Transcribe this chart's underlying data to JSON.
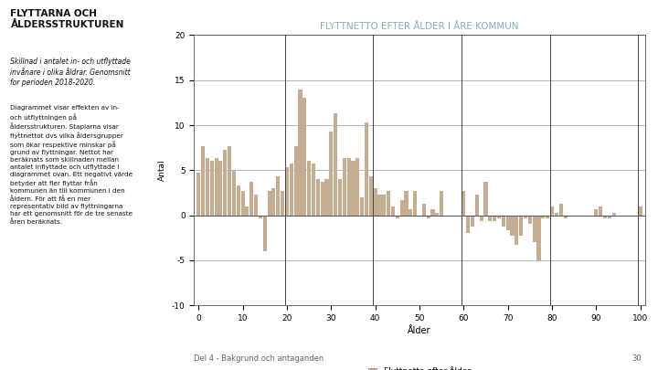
{
  "title_main": "FLYTTARNA OCH\nÅLDERSSTRUKTUREN",
  "subtitle": "Skillnad i antalet in- och utflyttade\ninvånare i olika åldrar. Genomsnitt\nfor perioden 2018-2020.",
  "body_text": "Diagrammet visar effekten av in-\noch utflyttningen på\nåldersstrukturen. Staplarna visar\nflyttnettot dvs vilka åldersgrupper\nsom ökar respektive minskar på\ngrund av flyttningar. Nettot har\nberäknats som skillnaden mellan\nantalet inflyttade och utflyttade i\ndiagrammet ovan. Ett negativt värde\nbetyder att fler flyttar från\nkommunen än till kommunen i den\nåldern. För att få en mer\nrepresentativ bild av flyttningarna\nhar ett genomsnitt för de tre senaste\nåren beräknats.",
  "chart_title_part1": "FLYTTNETTO EFTER ",
  "chart_title_part2": "ÅLDER I ÅRE ",
  "chart_title_part3": "KOMMUN",
  "chart_title_full": "FLYTTNETTO EFTER ÅLDER I ÅRE KOMMUN",
  "xlabel": "Ålder",
  "ylabel": "Antal",
  "ylim": [
    -10,
    20
  ],
  "yticks": [
    -10,
    -5,
    0,
    5,
    10,
    15,
    20
  ],
  "xticks": [
    0,
    10,
    20,
    30,
    40,
    50,
    60,
    70,
    80,
    90,
    100
  ],
  "legend_label": "Flyttnetto efter ålder",
  "bar_color": "#C4AD93",
  "vline_color": "#444444",
  "vline_positions": [
    20,
    40,
    60,
    80,
    100
  ],
  "grid_color": "#AAAAAA",
  "chart_title_color": "#8AABB8",
  "chart_title_bold_color": "#5A7A8A",
  "footer_text": "Del 4 - Bakgrund och antaganden",
  "footer_page": "30",
  "values": [
    4.7,
    7.7,
    6.3,
    6.0,
    6.3,
    6.0,
    7.3,
    7.7,
    5.0,
    3.3,
    2.7,
    1.0,
    3.7,
    2.3,
    -0.3,
    -4.0,
    2.7,
    3.0,
    4.3,
    2.7,
    5.3,
    5.7,
    7.7,
    14.0,
    13.0,
    6.0,
    5.7,
    4.0,
    3.7,
    4.0,
    9.3,
    11.3,
    4.0,
    6.3,
    6.3,
    6.0,
    6.3,
    2.0,
    10.3,
    4.3,
    3.0,
    2.3,
    2.3,
    2.7,
    1.0,
    -0.3,
    1.7,
    2.7,
    0.7,
    2.7,
    0.0,
    1.3,
    -0.3,
    0.7,
    0.3,
    2.7,
    0.0,
    0.0,
    0.0,
    0.0,
    2.7,
    -2.0,
    -1.3,
    2.3,
    -0.7,
    3.7,
    -0.7,
    -0.7,
    -0.3,
    -1.3,
    -1.7,
    -2.3,
    -3.3,
    -2.3,
    -0.3,
    -1.0,
    -3.0,
    -5.0,
    -0.3,
    -0.3,
    1.0,
    0.3,
    1.3,
    -0.3,
    0.0,
    0.0,
    0.0,
    0.0,
    0.0,
    0.0,
    0.7,
    1.0,
    -0.3,
    -0.3,
    0.3,
    0.0,
    0.0,
    0.0,
    0.0,
    0.0,
    1.0
  ]
}
